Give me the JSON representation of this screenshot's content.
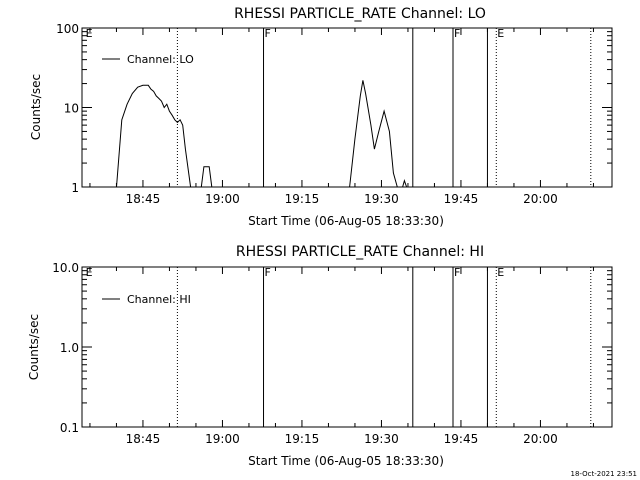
{
  "footer": {
    "timestamp": "18-Oct-2021 23:51"
  },
  "chart_data": [
    {
      "type": "line",
      "title": "RHESSI PARTICLE_RATE Channel: LO",
      "xlabel": "Start Time (06-Aug-05 18:33:30)",
      "ylabel": "Counts/sec",
      "yscale": "log",
      "ylim": [
        1,
        100
      ],
      "ytick_values": [
        1,
        10,
        100
      ],
      "ytick_labels": [
        "1",
        "10",
        "100"
      ],
      "xlim": [
        "18:33:30",
        "20:13:30"
      ],
      "xtick_values": [
        "18:45",
        "19:00",
        "19:15",
        "19:30",
        "19:45",
        "20:00"
      ],
      "xtick_labels": [
        "18:45",
        "19:00",
        "19:15",
        "19:30",
        "19:45",
        "20:00"
      ],
      "legend": {
        "placement": "top-left",
        "entries": [
          "Channel: LO"
        ]
      },
      "markers": [
        {
          "time": "18:34:00",
          "label": "E",
          "style": "none"
        },
        {
          "time": "18:51:30",
          "label": "",
          "style": "dotted"
        },
        {
          "time": "19:07:45",
          "label": "F",
          "style": "solid"
        },
        {
          "time": "19:35:55",
          "label": "",
          "style": "solid"
        },
        {
          "time": "19:43:30",
          "label": "F",
          "style": "solid"
        },
        {
          "time": "19:50:00",
          "label": "",
          "style": "solid"
        },
        {
          "time": "19:51:40",
          "label": "E",
          "style": "dotted"
        },
        {
          "time": "20:09:30",
          "label": "",
          "style": "dotted"
        }
      ],
      "series": [
        {
          "name": "Channel: LO",
          "segments": [
            [
              [
                "18:40:00",
                1.0
              ],
              [
                "18:41:00",
                7.0
              ],
              [
                "18:42:00",
                11.0
              ],
              [
                "18:43:00",
                15.0
              ],
              [
                "18:44:00",
                18.0
              ],
              [
                "18:45:00",
                19.0
              ],
              [
                "18:46:00",
                19.0
              ],
              [
                "18:46:30",
                17.0
              ],
              [
                "18:47:00",
                16.0
              ],
              [
                "18:47:30",
                14.0
              ],
              [
                "18:48:00",
                13.0
              ],
              [
                "18:48:30",
                12.0
              ],
              [
                "18:49:00",
                10.0
              ],
              [
                "18:49:30",
                11.0
              ],
              [
                "18:50:00",
                9.0
              ],
              [
                "18:50:30",
                8.0
              ],
              [
                "18:51:00",
                7.0
              ],
              [
                "18:51:30",
                6.5
              ],
              [
                "18:52:00",
                7.0
              ],
              [
                "18:52:30",
                6.0
              ],
              [
                "18:53:00",
                3.0
              ],
              [
                "18:54:00",
                1.0
              ]
            ],
            [
              [
                "18:56:00",
                1.0
              ],
              [
                "18:56:30",
                1.8
              ],
              [
                "18:57:30",
                1.8
              ],
              [
                "18:58:00",
                1.0
              ]
            ],
            [
              [
                "19:24:00",
                1.0
              ],
              [
                "19:25:00",
                4.0
              ],
              [
                "19:26:00",
                14.0
              ],
              [
                "19:26:30",
                22.0
              ],
              [
                "19:27:00",
                15.0
              ],
              [
                "19:28:00",
                6.0
              ],
              [
                "19:28:40",
                3.0
              ],
              [
                "19:29:30",
                5.0
              ],
              [
                "19:30:30",
                9.0
              ],
              [
                "19:31:30",
                5.0
              ],
              [
                "19:32:15",
                1.5
              ],
              [
                "19:33:00",
                1.0
              ]
            ],
            [
              [
                "19:34:00",
                1.0
              ],
              [
                "19:34:20",
                1.2
              ],
              [
                "19:34:45",
                1.0
              ]
            ]
          ]
        }
      ]
    },
    {
      "type": "line",
      "title": "RHESSI PARTICLE_RATE Channel: HI",
      "xlabel": "Start Time (06-Aug-05 18:33:30)",
      "ylabel": "Counts/sec",
      "yscale": "log",
      "ylim": [
        0.1,
        10
      ],
      "ytick_values": [
        0.1,
        1,
        10
      ],
      "ytick_labels": [
        "0.1",
        "1.0",
        "10.0"
      ],
      "xlim": [
        "18:33:30",
        "20:13:30"
      ],
      "xtick_values": [
        "18:45",
        "19:00",
        "19:15",
        "19:30",
        "19:45",
        "20:00"
      ],
      "xtick_labels": [
        "18:45",
        "19:00",
        "19:15",
        "19:30",
        "19:45",
        "20:00"
      ],
      "legend": {
        "placement": "top-left",
        "entries": [
          "Channel: HI"
        ]
      },
      "markers": [
        {
          "time": "18:34:00",
          "label": "E",
          "style": "none"
        },
        {
          "time": "18:51:30",
          "label": "",
          "style": "dotted"
        },
        {
          "time": "19:07:45",
          "label": "F",
          "style": "solid"
        },
        {
          "time": "19:35:55",
          "label": "",
          "style": "solid"
        },
        {
          "time": "19:43:30",
          "label": "F",
          "style": "solid"
        },
        {
          "time": "19:50:00",
          "label": "",
          "style": "solid"
        },
        {
          "time": "19:51:40",
          "label": "E",
          "style": "dotted"
        },
        {
          "time": "20:09:30",
          "label": "",
          "style": "dotted"
        }
      ],
      "series": [
        {
          "name": "Channel: HI",
          "segments": []
        }
      ]
    }
  ]
}
